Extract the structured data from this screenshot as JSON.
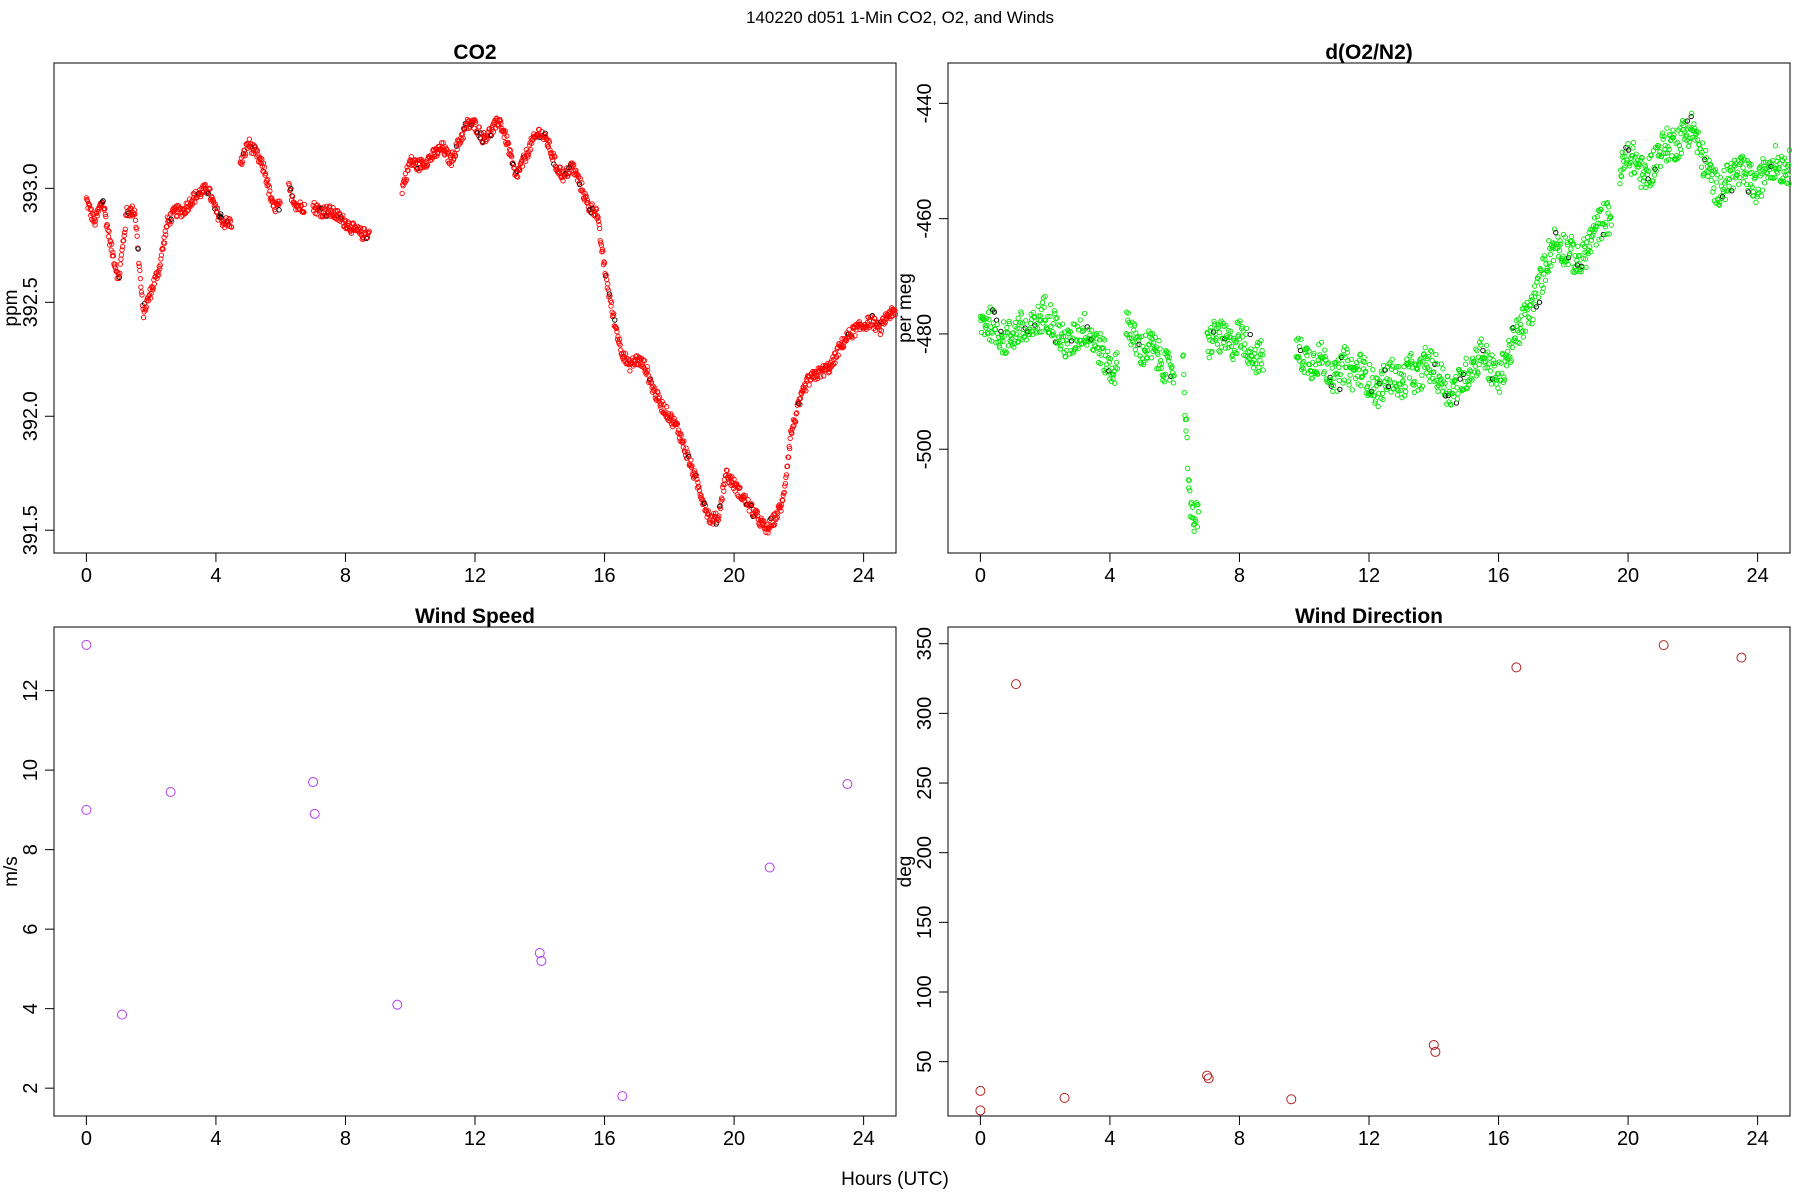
{
  "figure": {
    "title": "140220   d051   1-Min CO2, O2, and Winds",
    "xlabel": "Hours (UTC)"
  },
  "colors": {
    "co2": "#ff0000",
    "o2": "#00e400",
    "wind_speed": "#b23cf0",
    "wind_direction": "#b22222",
    "flagged": "#000000"
  },
  "chart_data": [
    {
      "id": "co2",
      "type": "scatter",
      "title": "CO2",
      "xlabel": "",
      "ylabel": "ppm",
      "xlim": [
        -1,
        25
      ],
      "ylim": [
        391.4,
        393.55
      ],
      "xticks": [
        0,
        4,
        8,
        12,
        16,
        20,
        24
      ],
      "yticks": [
        391.5,
        392.0,
        392.5,
        393.0
      ],
      "ytick_labels": [
        "391.5",
        "392.0",
        "392.5",
        "393.0"
      ],
      "marker": "small-open-circle",
      "color_key": "co2",
      "series": [
        {
          "x_start": 0.0,
          "x_step": 0.25,
          "y": [
            392.95,
            392.85,
            392.95,
            392.75,
            392.6,
            392.9,
            392.9,
            392.45,
            392.55,
            392.65,
            392.85,
            392.9,
            392.9,
            392.95,
            392.98,
            393.0,
            392.9,
            392.85,
            null,
            393.1,
            393.2,
            393.15,
            393.08,
            392.92,
            null,
            393.0,
            392.92,
            null,
            392.92,
            392.9,
            392.9,
            392.88,
            392.85,
            392.82,
            392.8,
            null,
            null,
            null,
            null,
            393.0,
            393.12,
            393.1,
            393.12,
            393.15,
            393.18,
            393.12,
            393.2,
            393.28,
            393.28,
            393.22,
            393.25,
            393.3,
            393.2,
            393.05,
            393.12,
            393.2,
            393.25,
            393.2,
            393.1,
            393.05,
            393.1,
            393.02,
            392.92,
            392.9,
            392.65,
            392.45,
            392.3,
            392.22,
            392.25,
            392.22,
            392.12,
            392.05,
            392.0,
            391.95,
            391.85,
            391.75,
            391.65,
            391.55,
            391.55,
            391.75,
            391.7,
            391.65,
            391.6,
            391.55,
            391.5,
            391.55,
            391.62,
            391.92,
            392.05,
            392.15,
            392.18,
            392.2,
            392.22,
            392.3,
            392.35,
            392.38,
            392.4,
            392.42,
            392.38,
            392.45
          ]
        }
      ]
    },
    {
      "id": "o2",
      "type": "scatter",
      "title": "d(O2/N2)",
      "xlabel": "",
      "ylabel": "per meg",
      "xlim": [
        -1,
        25
      ],
      "ylim": [
        -518,
        -433
      ],
      "xticks": [
        0,
        4,
        8,
        12,
        16,
        20,
        24
      ],
      "yticks": [
        -500,
        -480,
        -460,
        -440
      ],
      "ytick_labels": [
        "-500",
        "-480",
        "-460",
        "-440"
      ],
      "marker": "small-open-circle",
      "color_key": "o2",
      "series": [
        {
          "x_start": 0.0,
          "x_step": 0.25,
          "y": [
            -478,
            -478,
            -479,
            -481,
            -480,
            -479,
            -480,
            -478,
            -476,
            -478,
            -481,
            -482,
            -480,
            -479,
            -481,
            -483,
            -486,
            null,
            -477,
            -481,
            -483,
            -482,
            -484,
            -486,
            null,
            -484,
            -512,
            null,
            -482,
            -480,
            -481,
            -482,
            -480,
            -482,
            -484,
            null,
            null,
            null,
            null,
            -483,
            -484,
            -485,
            -484,
            -486,
            -488,
            -485,
            -487,
            -486,
            -488,
            -490,
            -488,
            -487,
            -489,
            -486,
            -488,
            -485,
            -486,
            -488,
            -490,
            -489,
            -487,
            -485,
            -483,
            -486,
            -488,
            -484,
            -481,
            -478,
            -476,
            -472,
            -467,
            -464,
            -465,
            -466,
            -468,
            -465,
            -462,
            -460,
            null,
            -452,
            -449,
            -450,
            -453,
            -451,
            -448,
            -447,
            -447,
            -445,
            -444,
            -449,
            -452,
            -455,
            -454,
            -452,
            -452,
            -453,
            -455,
            -451,
            -450,
            -451
          ]
        }
      ]
    },
    {
      "id": "wind_speed",
      "type": "scatter",
      "title": "Wind Speed",
      "xlabel": "",
      "ylabel": "m/s",
      "xlim": [
        -1,
        25
      ],
      "ylim": [
        1.3,
        13.6
      ],
      "xticks": [
        0,
        4,
        8,
        12,
        16,
        20,
        24
      ],
      "yticks": [
        2,
        4,
        6,
        8,
        10,
        12
      ],
      "ytick_labels": [
        "2",
        "4",
        "6",
        "8",
        "10",
        "12"
      ],
      "marker": "open-circle",
      "color_key": "wind_speed",
      "series": [
        {
          "x": [
            0.0,
            0.0,
            1.1,
            2.6,
            7.0,
            7.05,
            9.6,
            14.0,
            14.05,
            16.55,
            21.1,
            23.5
          ],
          "y": [
            13.15,
            9.0,
            3.85,
            9.45,
            9.7,
            8.9,
            4.1,
            5.4,
            5.2,
            1.8,
            7.55,
            9.65
          ]
        }
      ]
    },
    {
      "id": "wind_direction",
      "type": "scatter",
      "title": "Wind Direction",
      "xlabel": "",
      "ylabel": "deg",
      "xlim": [
        -1,
        25
      ],
      "ylim": [
        11,
        362
      ],
      "xticks": [
        0,
        4,
        8,
        12,
        16,
        20,
        24
      ],
      "yticks": [
        50,
        100,
        150,
        200,
        250,
        300,
        350
      ],
      "ytick_labels": [
        "50",
        "100",
        "150",
        "200",
        "250",
        "300",
        "350"
      ],
      "marker": "open-circle",
      "color_key": "wind_direction",
      "series": [
        {
          "x": [
            0.0,
            0.0,
            1.1,
            2.6,
            7.0,
            7.05,
            9.6,
            14.0,
            14.05,
            16.55,
            21.1,
            23.5
          ],
          "y": [
            29,
            15,
            321,
            24,
            40,
            38,
            23,
            62,
            57,
            333,
            349,
            340
          ]
        }
      ]
    }
  ]
}
